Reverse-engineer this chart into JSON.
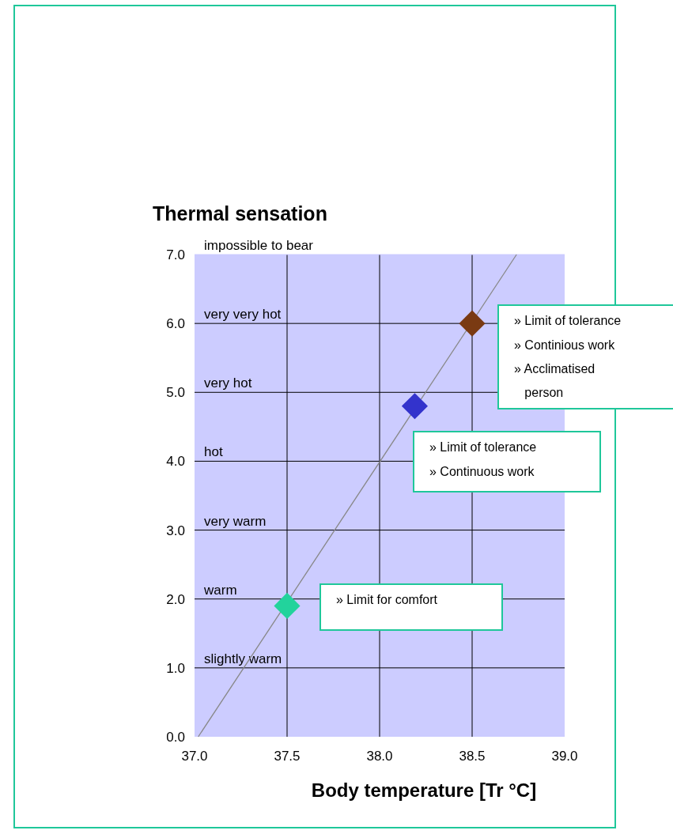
{
  "chart_data": {
    "type": "scatter",
    "title": "Thermal sensation",
    "xlabel": "Body temperature [Tr °C]",
    "xlim": [
      37.0,
      39.0
    ],
    "ylim": [
      0,
      7.0
    ],
    "xticks": [
      {
        "value": 37,
        "label": "37.0"
      },
      {
        "value": 37.5,
        "label": "37.5"
      },
      {
        "value": 38,
        "label": "38.0"
      },
      {
        "value": 38.5,
        "label": "38.5"
      },
      {
        "value": 39,
        "label": "39.0"
      }
    ],
    "yticks": [
      {
        "value": 0,
        "label": "0.0"
      },
      {
        "value": 1,
        "label": "1.0"
      },
      {
        "value": 2,
        "label": "2.0"
      },
      {
        "value": 3,
        "label": "3.0"
      },
      {
        "value": 4,
        "label": "4.0"
      },
      {
        "value": 5,
        "label": "5.0"
      },
      {
        "value": 6,
        "label": "6.0"
      },
      {
        "value": 7,
        "label": "7.0"
      }
    ],
    "grid": "x",
    "ref_lines": [
      {
        "axis": "y",
        "value": 7.0,
        "label": "impossible to bear",
        "color": "#ccccff"
      },
      {
        "axis": "y",
        "value": 6.0,
        "label": "very very hot",
        "color": "#000000"
      },
      {
        "axis": "y",
        "value": 5.0,
        "label": "very hot",
        "color": "#000000"
      },
      {
        "axis": "y",
        "value": 4.0,
        "label": "hot",
        "color": "#000000"
      },
      {
        "axis": "y",
        "value": 3.0,
        "label": "very warm",
        "color": "#000000"
      },
      {
        "axis": "y",
        "value": 2.0,
        "label": "warm",
        "color": "#000000"
      },
      {
        "axis": "y",
        "value": 1.0,
        "label": "slightly warm",
        "color": "#000000"
      }
    ],
    "series": [
      {
        "type": "line",
        "color": "#888888",
        "x": [
          37.02,
          38.74
        ],
        "values": [
          0,
          7.0
        ]
      },
      {
        "marker": "diamond",
        "colors": [
          "#22d39c",
          "#3333cc",
          "#7a3a12"
        ],
        "x": [
          37.5,
          38.19,
          38.5
        ],
        "values": [
          1.9,
          4.8,
          6.0
        ]
      }
    ],
    "annotations": [
      "» Limit of tolerance\n» Continious work\n» Acclimatised\n   person",
      "» Limit of tolerance\n» Continuous work",
      "» Limit for comfort"
    ]
  }
}
